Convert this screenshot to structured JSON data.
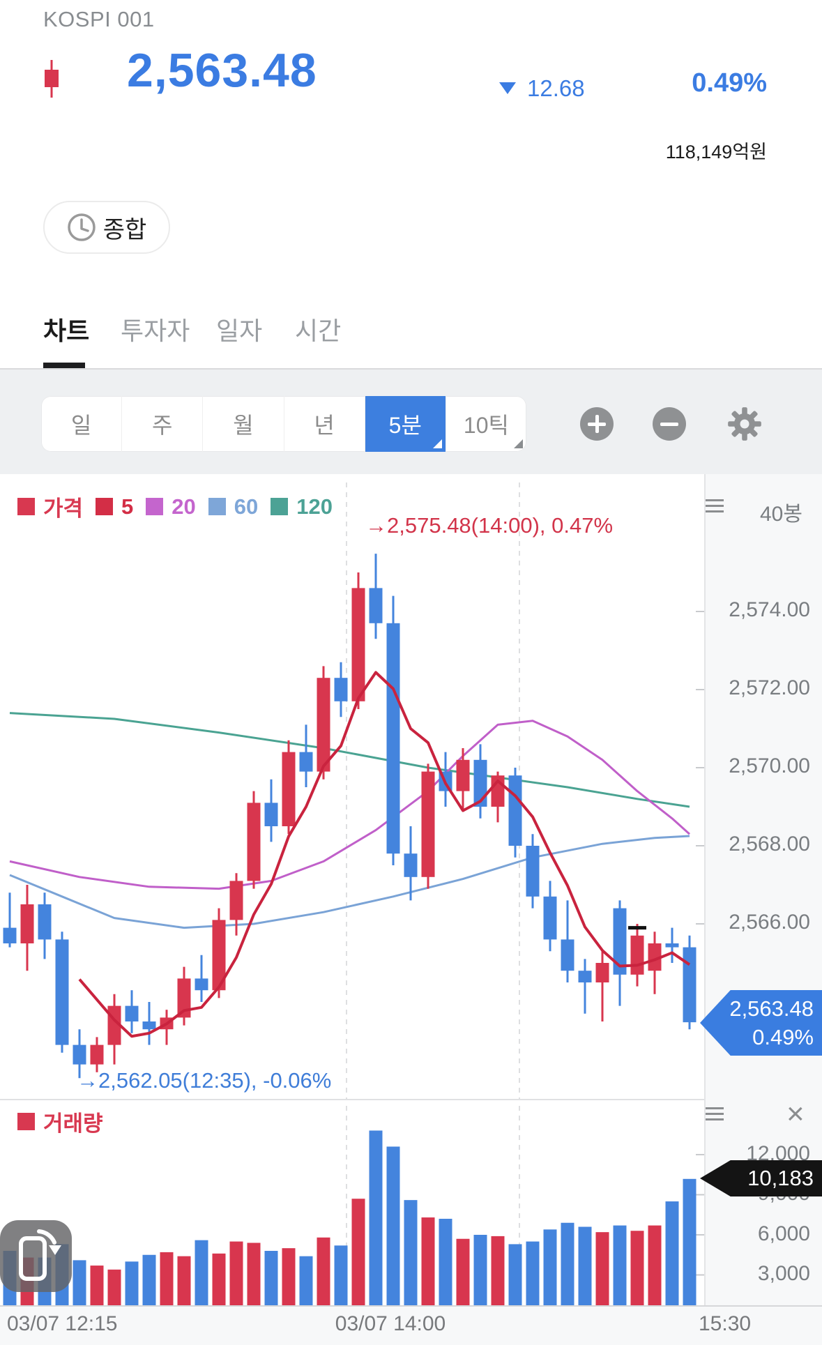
{
  "header": {
    "title": "KOSPI 001",
    "price": "2,563.48",
    "change": "12.68",
    "change_pct": "0.49%",
    "trading_amount": "118,149억원"
  },
  "summary_button": {
    "label": "종합"
  },
  "tabs": {
    "items": [
      "차트",
      "투자자",
      "일자",
      "시간"
    ],
    "active_index": 0
  },
  "toolbar": {
    "periods": [
      "일",
      "주",
      "월",
      "년",
      "5분",
      "10틱"
    ],
    "active": "5분"
  },
  "price_panel": {
    "bar_count_label": "40봉",
    "y_labels": [
      "2,574.00",
      "2,572.00",
      "2,570.00",
      "2,568.00",
      "2,566.00"
    ],
    "high_annotation": "→2,575.48(14:00), 0.47%",
    "low_annotation": "→2,562.05(12:35), -0.06%",
    "price_badge_line1": "2,563.48",
    "price_badge_line2": "0.49%",
    "legend": [
      {
        "label": "가격",
        "color": "#d83850"
      },
      {
        "label": "5",
        "color": "#d32e46"
      },
      {
        "label": "20",
        "color": "#c465cd"
      },
      {
        "label": "60",
        "color": "#7ea6d8"
      },
      {
        "label": "120",
        "color": "#4ca295"
      }
    ]
  },
  "volume_panel": {
    "legend_label": "거래량",
    "legend_color": "#d83850",
    "y_labels": [
      "12,000",
      "9,000",
      "6,000",
      "3,000"
    ],
    "badge": "10,183"
  },
  "x_axis": {
    "labels": [
      "03/07 12:15",
      "03/07 14:00",
      "15:30"
    ]
  },
  "colors": {
    "up": "#d8364e",
    "down": "#4484dd",
    "accent": "#3b7ce0",
    "ma5": "#c9233e",
    "ma20": "#c05fc9",
    "ma60": "#7aa3d6",
    "ma120": "#4aa392"
  },
  "chart_data": {
    "type": "candlestick",
    "interval": "5분",
    "visible_bars": 40,
    "price_ticks": [
      2574,
      2572,
      2570,
      2568,
      2566
    ],
    "volume_ticks": [
      12000,
      9000,
      6000,
      3000
    ],
    "high": {
      "price": 2575.48,
      "time": "14:00",
      "pct": "0.47%"
    },
    "low": {
      "price": 2562.05,
      "time": "12:35",
      "pct": "-0.06%"
    },
    "last": {
      "price": 2563.48,
      "pct": "0.49%",
      "volume": 10183
    },
    "prev_close_marker": {
      "bar": 36,
      "price": 2565.9
    },
    "x_gridlines": [
      497,
      745
    ],
    "candles": [
      [
        2565.9,
        2566.8,
        2565.4,
        2565.5
      ],
      [
        2565.5,
        2567.0,
        2564.8,
        2566.5
      ],
      [
        2566.5,
        2566.8,
        2565.1,
        2565.6
      ],
      [
        2565.6,
        2565.8,
        2562.7,
        2562.9
      ],
      [
        2562.9,
        2563.3,
        2562.05,
        2562.4
      ],
      [
        2562.4,
        2563.1,
        2562.2,
        2562.9
      ],
      [
        2562.9,
        2564.2,
        2562.4,
        2563.9
      ],
      [
        2563.9,
        2564.3,
        2563.2,
        2563.5
      ],
      [
        2563.5,
        2564.0,
        2562.9,
        2563.3
      ],
      [
        2563.3,
        2563.8,
        2562.9,
        2563.6
      ],
      [
        2563.6,
        2564.9,
        2563.4,
        2564.6
      ],
      [
        2564.6,
        2565.2,
        2564.0,
        2564.3
      ],
      [
        2564.3,
        2566.4,
        2564.1,
        2566.1
      ],
      [
        2566.1,
        2567.3,
        2565.7,
        2567.1
      ],
      [
        2567.1,
        2569.4,
        2566.9,
        2569.1
      ],
      [
        2569.1,
        2569.7,
        2568.1,
        2568.5
      ],
      [
        2568.5,
        2570.7,
        2568.3,
        2570.4
      ],
      [
        2570.4,
        2571.1,
        2569.5,
        2569.9
      ],
      [
        2569.9,
        2572.6,
        2569.7,
        2572.3
      ],
      [
        2572.3,
        2572.7,
        2571.3,
        2571.7
      ],
      [
        2571.7,
        2575.0,
        2571.5,
        2574.6
      ],
      [
        2574.6,
        2575.48,
        2573.3,
        2573.7
      ],
      [
        2573.7,
        2574.4,
        2567.5,
        2567.8
      ],
      [
        2567.8,
        2568.5,
        2566.6,
        2567.2
      ],
      [
        2567.2,
        2570.1,
        2566.9,
        2569.9
      ],
      [
        2569.9,
        2570.4,
        2569.0,
        2569.4
      ],
      [
        2569.4,
        2570.5,
        2568.9,
        2570.2
      ],
      [
        2570.2,
        2570.6,
        2568.7,
        2569.0
      ],
      [
        2569.0,
        2569.9,
        2568.6,
        2569.8
      ],
      [
        2569.8,
        2570.0,
        2567.7,
        2568.0
      ],
      [
        2568.0,
        2568.3,
        2566.4,
        2566.7
      ],
      [
        2566.7,
        2567.1,
        2565.3,
        2565.6
      ],
      [
        2565.6,
        2566.6,
        2564.5,
        2564.8
      ],
      [
        2564.8,
        2565.1,
        2563.7,
        2564.5
      ],
      [
        2564.5,
        2565.3,
        2563.5,
        2565.0
      ],
      [
        2566.4,
        2566.6,
        2563.9,
        2564.7
      ],
      [
        2564.7,
        2566.0,
        2564.4,
        2565.7
      ],
      [
        2564.8,
        2565.8,
        2564.2,
        2565.5
      ],
      [
        2565.5,
        2565.9,
        2565.0,
        2565.4
      ],
      [
        2565.4,
        2565.7,
        2563.3,
        2563.48
      ]
    ],
    "volumes": [
      4800,
      4300,
      4300,
      5300,
      4100,
      3700,
      3400,
      4000,
      4500,
      4700,
      4400,
      5600,
      4600,
      5500,
      5400,
      4800,
      5000,
      4400,
      5800,
      5200,
      8700,
      13800,
      12600,
      8600,
      7300,
      7200,
      5700,
      6000,
      5900,
      5300,
      5500,
      6400,
      6900,
      6600,
      6200,
      6700,
      6300,
      6700,
      8500,
      10183
    ],
    "ma20_points": [
      [
        0,
        2567.6
      ],
      [
        4,
        2567.2
      ],
      [
        8,
        2566.95
      ],
      [
        12,
        2566.9
      ],
      [
        15,
        2567.1
      ],
      [
        18,
        2567.6
      ],
      [
        21,
        2568.4
      ],
      [
        24,
        2569.4
      ],
      [
        26,
        2570.3
      ],
      [
        28,
        2571.1
      ],
      [
        30,
        2571.2
      ],
      [
        32,
        2570.8
      ],
      [
        34,
        2570.2
      ],
      [
        36,
        2569.4
      ],
      [
        38,
        2568.7
      ],
      [
        39,
        2568.3
      ]
    ],
    "ma60_points": [
      [
        0,
        2567.25
      ],
      [
        3,
        2566.7
      ],
      [
        6,
        2566.15
      ],
      [
        10,
        2565.9
      ],
      [
        14,
        2566.0
      ],
      [
        18,
        2566.3
      ],
      [
        22,
        2566.7
      ],
      [
        26,
        2567.15
      ],
      [
        30,
        2567.7
      ],
      [
        34,
        2568.05
      ],
      [
        37,
        2568.2
      ],
      [
        39,
        2568.25
      ]
    ],
    "ma120_points": [
      [
        0,
        2571.4
      ],
      [
        6,
        2571.25
      ],
      [
        12,
        2570.9
      ],
      [
        18,
        2570.5
      ],
      [
        24,
        2570.0
      ],
      [
        28,
        2569.75
      ],
      [
        32,
        2569.5
      ],
      [
        36,
        2569.2
      ],
      [
        39,
        2569.0
      ]
    ]
  }
}
